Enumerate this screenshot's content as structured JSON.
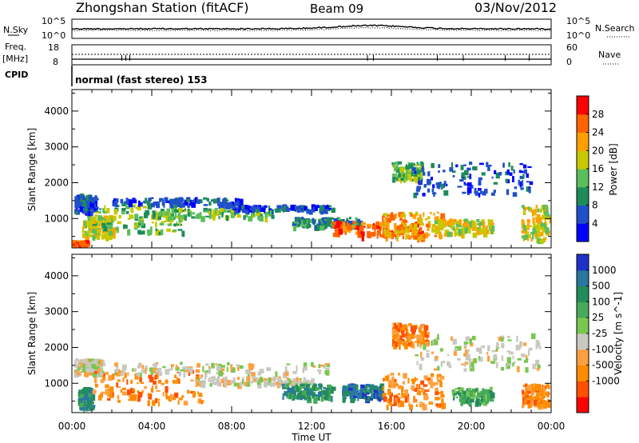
{
  "header": {
    "station": "Zhongshan Station (fitACF)",
    "beam": "Beam 09",
    "date": "03/Nov/2012"
  },
  "top_panels": {
    "nsky_label": "N.Sky",
    "nsky_ticks": [
      "10^5",
      "10^0"
    ],
    "nsearch_label": "N.Search",
    "nsearch_ticks": [
      "10^5",
      "10^0"
    ],
    "freq_label_1": "Freq.",
    "freq_label_2": "[MHz]",
    "freq_ticks": [
      "18",
      "8"
    ],
    "nave_label": "Nave",
    "nave_ticks": [
      "60",
      "0"
    ],
    "cpid_label": "CPID",
    "cpid_text": "normal (fast stereo) 153"
  },
  "chart_data": [
    {
      "type": "heatmap",
      "name": "power-panel",
      "xlabel": "Time UT",
      "ylabel": "Slant Range [km]",
      "x_ticks": [
        "00:00",
        "04:00",
        "08:00",
        "12:00",
        "16:00",
        "20:00",
        "00:00"
      ],
      "y_ticks": [
        "1000",
        "2000",
        "3000",
        "4000"
      ],
      "xlim_hours": [
        0,
        24
      ],
      "ylim_km": [
        180,
        4600
      ],
      "colorbar": {
        "label": "Power [dB]",
        "tick_labels": [
          "4",
          "8",
          "12",
          "16",
          "20",
          "24",
          "28"
        ],
        "range": [
          0,
          30
        ],
        "colors": [
          "#0000ff",
          "#2050c8",
          "#1e8c5a",
          "#5abe5a",
          "#c8c800",
          "#ffa000",
          "#ff6400",
          "#ff0000"
        ]
      },
      "regions": [
        {
          "t": [
            0.1,
            1.2
          ],
          "r": [
            1200,
            1700
          ],
          "level": 1
        },
        {
          "t": [
            0.5,
            2.0
          ],
          "r": [
            500,
            1100
          ],
          "level": 4
        },
        {
          "t": [
            1.0,
            5.5
          ],
          "r": [
            600,
            1400
          ],
          "level": 3
        },
        {
          "t": [
            2.0,
            8.5
          ],
          "r": [
            1400,
            1600
          ],
          "level": 1
        },
        {
          "t": [
            4.0,
            10.0
          ],
          "r": [
            1050,
            1300
          ],
          "level": 3
        },
        {
          "t": [
            8.0,
            13.0
          ],
          "r": [
            1250,
            1400
          ],
          "level": 1
        },
        {
          "t": [
            11.0,
            14.5
          ],
          "r": [
            800,
            1050
          ],
          "level": 2
        },
        {
          "t": [
            13.0,
            17.5
          ],
          "r": [
            500,
            950
          ],
          "level": 6
        },
        {
          "t": [
            15.5,
            18.5
          ],
          "r": [
            500,
            1200
          ],
          "level": 5
        },
        {
          "t": [
            16.0,
            17.5
          ],
          "r": [
            2100,
            2600
          ],
          "level": 3
        },
        {
          "t": [
            17.0,
            23.0
          ],
          "r": [
            1700,
            2600
          ],
          "level": 1
        },
        {
          "t": [
            18.0,
            21.0
          ],
          "r": [
            600,
            1000
          ],
          "level": 4
        },
        {
          "t": [
            22.5,
            24.0
          ],
          "r": [
            400,
            1400
          ],
          "level": 4
        },
        {
          "t": [
            0.0,
            0.7
          ],
          "r": [
            250,
            400
          ],
          "level": 6
        }
      ]
    },
    {
      "type": "heatmap",
      "name": "velocity-panel",
      "xlabel": "Time UT",
      "ylabel": "Slant Range [km]",
      "x_ticks": [
        "00:00",
        "04:00",
        "08:00",
        "12:00",
        "16:00",
        "20:00",
        "00:00"
      ],
      "y_ticks": [
        "1000",
        "2000",
        "3000",
        "4000"
      ],
      "xlim_hours": [
        0,
        24
      ],
      "ylim_km": [
        180,
        4600
      ],
      "colorbar": {
        "label": "Velocity [m s^-1]",
        "tick_labels": [
          "1000",
          "500",
          "100",
          "25",
          "-25",
          "-100",
          "-500",
          "-1000"
        ],
        "colors": [
          "#1e32c8",
          "#2878a0",
          "#238c5a",
          "#46aa5a",
          "#78c850",
          "#c8c8c0",
          "#ffa040",
          "#ff8c00",
          "#ff5000",
          "#ff0000"
        ]
      },
      "regions": [
        {
          "t": [
            0.1,
            1.5
          ],
          "r": [
            1300,
            1700
          ],
          "level": 5
        },
        {
          "t": [
            0.3,
            1.0
          ],
          "r": [
            300,
            900
          ],
          "level": 2
        },
        {
          "t": [
            1.0,
            6.5
          ],
          "r": [
            500,
            1400
          ],
          "level": 7
        },
        {
          "t": [
            2.0,
            13.0
          ],
          "r": [
            1300,
            1600
          ],
          "level": 5
        },
        {
          "t": [
            6.0,
            12.0
          ],
          "r": [
            1000,
            1200
          ],
          "level": 5
        },
        {
          "t": [
            10.5,
            13.0
          ],
          "r": [
            600,
            1000
          ],
          "level": 2
        },
        {
          "t": [
            13.5,
            15.5
          ],
          "r": [
            600,
            1000
          ],
          "level": 1
        },
        {
          "t": [
            15.5,
            18.5
          ],
          "r": [
            400,
            1300
          ],
          "level": 7
        },
        {
          "t": [
            16.0,
            17.8
          ],
          "r": [
            2100,
            2700
          ],
          "level": 7
        },
        {
          "t": [
            17.0,
            23.5
          ],
          "r": [
            1400,
            2400
          ],
          "level": 5
        },
        {
          "t": [
            19.0,
            21.0
          ],
          "r": [
            500,
            900
          ],
          "level": 3
        },
        {
          "t": [
            22.5,
            24.0
          ],
          "r": [
            400,
            1000
          ],
          "level": 7
        }
      ]
    }
  ]
}
